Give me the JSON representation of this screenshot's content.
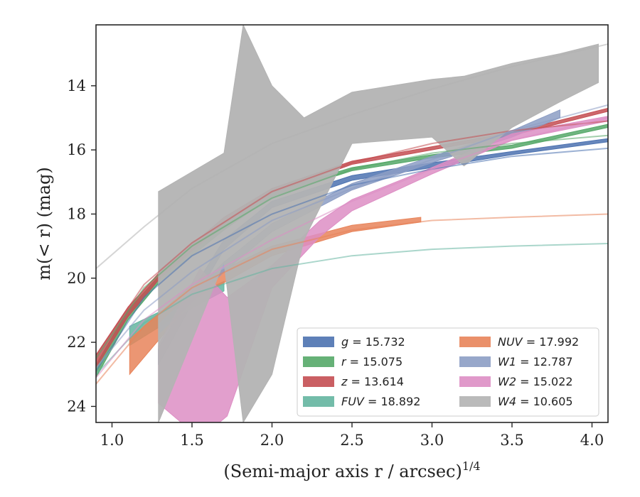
{
  "chart_data": {
    "type": "line",
    "xlabel": "(Semi-major axis r / arcsec)",
    "xlabel_sup": "1/4",
    "ylabel": "m(< r) (mag)",
    "xlim": [
      0.9,
      4.1
    ],
    "ylim": [
      24.5,
      12.1
    ],
    "y_inverted": true,
    "xticks": [
      1.0,
      1.5,
      2.0,
      2.5,
      3.0,
      3.5,
      4.0
    ],
    "xtick_labels": [
      "1.0",
      "1.5",
      "2.0",
      "2.5",
      "3.0",
      "3.5",
      "4.0"
    ],
    "yticks": [
      14,
      16,
      18,
      20,
      22,
      24
    ],
    "ytick_labels": [
      "14",
      "16",
      "18",
      "20",
      "22",
      "24"
    ],
    "grid": false,
    "legend_position": "lower-right",
    "legend_columns": 2,
    "series": [
      {
        "name": "g = 15.732",
        "color": "#4c72b0",
        "band": [
          [
            1.29,
            22.2,
            22.7
          ],
          [
            1.5,
            20.4,
            20.8
          ],
          [
            1.7,
            18.8,
            19.1
          ],
          [
            2.0,
            17.6,
            17.8
          ],
          [
            2.5,
            16.8,
            16.95
          ],
          [
            3.0,
            16.4,
            16.55
          ],
          [
            3.5,
            16.05,
            16.15
          ],
          [
            4.1,
            15.65,
            15.75
          ]
        ],
        "model": [
          [
            0.9,
            22.9
          ],
          [
            1.2,
            20.6
          ],
          [
            1.5,
            19.3
          ],
          [
            2.0,
            18.0
          ],
          [
            2.5,
            17.1
          ],
          [
            3.0,
            16.6
          ],
          [
            3.5,
            16.2
          ],
          [
            4.1,
            15.95
          ]
        ]
      },
      {
        "name": "r = 15.075",
        "color": "#55a868",
        "band": [
          [
            0.9,
            22.7,
            23.1
          ],
          [
            1.1,
            21.0,
            21.3
          ],
          [
            1.3,
            19.9,
            20.1
          ],
          [
            1.7,
            18.3,
            18.5
          ],
          [
            2.0,
            17.3,
            17.45
          ],
          [
            2.5,
            16.55,
            16.65
          ],
          [
            3.0,
            16.15,
            16.25
          ],
          [
            3.5,
            15.85,
            15.95
          ],
          [
            4.1,
            15.2,
            15.3
          ]
        ],
        "model": [
          [
            0.9,
            22.5
          ],
          [
            1.2,
            20.3
          ],
          [
            1.5,
            19.0
          ],
          [
            2.0,
            17.5
          ],
          [
            2.5,
            16.6
          ],
          [
            3.0,
            16.1
          ],
          [
            3.5,
            15.8
          ],
          [
            4.1,
            15.55
          ]
        ]
      },
      {
        "name": "z = 13.614",
        "color": "#c44e52",
        "band": [
          [
            0.9,
            22.4,
            22.8
          ],
          [
            1.1,
            20.9,
            21.2
          ],
          [
            1.3,
            19.8,
            20.0
          ],
          [
            1.7,
            18.1,
            18.3
          ],
          [
            2.0,
            17.2,
            17.35
          ],
          [
            2.5,
            16.35,
            16.45
          ],
          [
            3.0,
            15.9,
            16.0
          ],
          [
            3.5,
            15.45,
            15.55
          ],
          [
            4.1,
            14.7,
            14.8
          ]
        ],
        "model": [
          [
            0.9,
            22.4
          ],
          [
            1.2,
            20.2
          ],
          [
            1.5,
            18.9
          ],
          [
            2.0,
            17.3
          ],
          [
            2.5,
            16.4
          ],
          [
            3.0,
            15.8
          ],
          [
            3.5,
            15.4
          ],
          [
            4.1,
            15.1
          ]
        ]
      },
      {
        "name": "FUV = 18.892",
        "color": "#64b5a0",
        "band": [
          [
            1.11,
            21.5,
            22.1
          ],
          [
            1.4,
            20.8,
            21.2
          ],
          [
            1.7,
            20.1,
            20.4
          ]
        ],
        "model": [
          [
            0.9,
            23.0
          ],
          [
            1.2,
            21.4
          ],
          [
            1.5,
            20.5
          ],
          [
            2.0,
            19.7
          ],
          [
            2.5,
            19.3
          ],
          [
            3.0,
            19.1
          ],
          [
            3.5,
            19.0
          ],
          [
            4.1,
            18.92
          ]
        ]
      },
      {
        "name": "NUV = 17.992",
        "color": "#e8845a",
        "band": [
          [
            1.11,
            21.9,
            23.0
          ],
          [
            1.5,
            20.2,
            20.7
          ],
          [
            2.0,
            19.0,
            19.3
          ],
          [
            2.5,
            18.35,
            18.55
          ],
          [
            2.93,
            18.1,
            18.25
          ]
        ],
        "model": [
          [
            0.9,
            23.3
          ],
          [
            1.2,
            21.5
          ],
          [
            1.5,
            20.3
          ],
          [
            2.0,
            19.1
          ],
          [
            2.5,
            18.5
          ],
          [
            3.0,
            18.2
          ],
          [
            3.5,
            18.1
          ],
          [
            4.1,
            18.0
          ]
        ]
      },
      {
        "name": "W1 = 12.787",
        "color": "#8c9dc4",
        "band": [
          [
            1.3,
            21.4,
            21.7
          ],
          [
            1.7,
            19.5,
            19.8
          ],
          [
            2.0,
            18.3,
            18.55
          ],
          [
            2.5,
            17.05,
            17.25
          ],
          [
            3.0,
            16.2,
            16.4
          ],
          [
            3.5,
            15.4,
            15.6
          ],
          [
            3.8,
            14.75,
            15.0
          ]
        ],
        "model": [
          [
            0.9,
            22.8
          ],
          [
            1.2,
            21.0
          ],
          [
            1.5,
            19.8
          ],
          [
            2.0,
            18.2
          ],
          [
            2.5,
            17.2
          ],
          [
            3.0,
            16.3
          ],
          [
            3.5,
            15.4
          ],
          [
            4.1,
            14.6
          ]
        ]
      },
      {
        "name": "W2 = 15.022",
        "color": "#dd8ec4",
        "band": [
          [
            1.29,
            22.1,
            23.9
          ],
          [
            1.55,
            19.7,
            25.0
          ],
          [
            1.72,
            20.6,
            24.3
          ],
          [
            2.0,
            19.6,
            20.3
          ],
          [
            2.3,
            18.2,
            18.7
          ],
          [
            2.5,
            17.55,
            17.9
          ],
          [
            3.0,
            16.55,
            16.75
          ],
          [
            3.5,
            15.5,
            15.7
          ],
          [
            4.1,
            14.95,
            15.1
          ]
        ],
        "model": [
          [
            0.9,
            23.1
          ],
          [
            1.2,
            21.3
          ],
          [
            1.5,
            20.2
          ],
          [
            2.0,
            18.8
          ],
          [
            2.5,
            17.6
          ],
          [
            3.0,
            16.6
          ],
          [
            3.5,
            15.7
          ],
          [
            4.1,
            15.0
          ]
        ]
      },
      {
        "name": "W4 = 10.605",
        "color": "#b3b3b3",
        "band": [
          [
            1.29,
            17.3,
            24.5
          ],
          [
            1.7,
            16.1,
            19.5
          ],
          [
            1.82,
            12.1,
            24.5
          ],
          [
            2.0,
            14.0,
            23.0
          ],
          [
            2.2,
            15.0,
            18.8
          ],
          [
            2.5,
            14.2,
            15.8
          ],
          [
            3.0,
            13.8,
            15.6
          ],
          [
            3.2,
            13.7,
            16.5
          ],
          [
            3.5,
            13.3,
            15.3
          ],
          [
            3.8,
            13.0,
            14.5
          ],
          [
            4.04,
            12.7,
            13.9
          ]
        ],
        "model": [
          [
            0.9,
            19.7
          ],
          [
            1.2,
            18.4
          ],
          [
            1.5,
            17.2
          ],
          [
            2.0,
            15.8
          ],
          [
            2.5,
            14.9
          ],
          [
            3.0,
            14.1
          ],
          [
            3.5,
            13.4
          ],
          [
            4.1,
            12.7
          ]
        ]
      }
    ]
  }
}
